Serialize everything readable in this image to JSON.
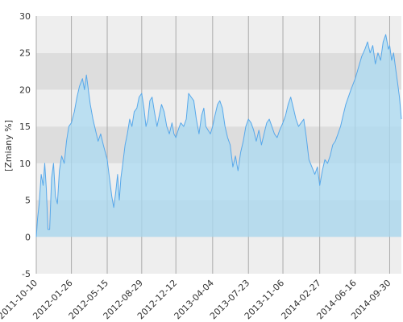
{
  "chart_data": {
    "type": "area",
    "title": "",
    "xlabel": "",
    "ylabel": "[Zmiany %]",
    "ylim": [
      -5,
      30
    ],
    "yticks": [
      -5,
      0,
      5,
      10,
      15,
      20,
      25,
      30
    ],
    "grid": true,
    "legend": "none",
    "xlim": [
      "2011-10-10",
      "2014-11-05"
    ],
    "xtick_labels": [
      "2011-10-10",
      "2012-01-26",
      "2012-05-15",
      "2012-08-29",
      "2012-12-12",
      "2013-04-04",
      "2013-07-23",
      "2013-11-06",
      "2014-02-27",
      "2014-06-16",
      "2014-09-30"
    ],
    "series": [
      {
        "points": [
          [
            "2011-10-10",
            0
          ],
          [
            "2011-10-14",
            2.5
          ],
          [
            "2011-10-19",
            4.5
          ],
          [
            "2011-10-25",
            8.5
          ],
          [
            "2011-10-31",
            7.0
          ],
          [
            "2011-11-05",
            10.0
          ],
          [
            "2011-11-10",
            6.5
          ],
          [
            "2011-11-15",
            1.0
          ],
          [
            "2011-11-20",
            1.0
          ],
          [
            "2011-11-26",
            8.0
          ],
          [
            "2011-12-02",
            10.0
          ],
          [
            "2011-12-08",
            5.5
          ],
          [
            "2011-12-14",
            4.5
          ],
          [
            "2011-12-20",
            9.0
          ],
          [
            "2011-12-27",
            11.0
          ],
          [
            "2012-01-04",
            10.0
          ],
          [
            "2012-01-11",
            13.0
          ],
          [
            "2012-01-18",
            15.0
          ],
          [
            "2012-01-26",
            15.5
          ],
          [
            "2012-02-04",
            17.0
          ],
          [
            "2012-02-12",
            19.0
          ],
          [
            "2012-02-20",
            20.5
          ],
          [
            "2012-02-29",
            21.5
          ],
          [
            "2012-03-06",
            20.0
          ],
          [
            "2012-03-12",
            22.0
          ],
          [
            "2012-03-18",
            20.0
          ],
          [
            "2012-03-24",
            18.0
          ],
          [
            "2012-04-01",
            16.0
          ],
          [
            "2012-04-09",
            14.5
          ],
          [
            "2012-04-17",
            13.0
          ],
          [
            "2012-04-25",
            14.0
          ],
          [
            "2012-05-03",
            12.5
          ],
          [
            "2012-05-15",
            10.5
          ],
          [
            "2012-05-22",
            8.0
          ],
          [
            "2012-05-29",
            5.5
          ],
          [
            "2012-06-04",
            4.0
          ],
          [
            "2012-06-10",
            6.0
          ],
          [
            "2012-06-16",
            8.5
          ],
          [
            "2012-06-21",
            5.0
          ],
          [
            "2012-06-26",
            8.0
          ],
          [
            "2012-07-02",
            10.0
          ],
          [
            "2012-07-09",
            12.5
          ],
          [
            "2012-07-16",
            14.0
          ],
          [
            "2012-07-23",
            16.0
          ],
          [
            "2012-07-30",
            15.0
          ],
          [
            "2012-08-06",
            17.0
          ],
          [
            "2012-08-14",
            17.5
          ],
          [
            "2012-08-21",
            19.0
          ],
          [
            "2012-08-29",
            19.5
          ],
          [
            "2012-09-05",
            17.5
          ],
          [
            "2012-09-11",
            15.0
          ],
          [
            "2012-09-17",
            16.0
          ],
          [
            "2012-09-23",
            18.5
          ],
          [
            "2012-09-30",
            19.0
          ],
          [
            "2012-10-07",
            17.0
          ],
          [
            "2012-10-15",
            15.0
          ],
          [
            "2012-10-22",
            16.5
          ],
          [
            "2012-10-29",
            18.0
          ],
          [
            "2012-11-06",
            17.0
          ],
          [
            "2012-11-14",
            15.0
          ],
          [
            "2012-11-22",
            14.0
          ],
          [
            "2012-11-30",
            15.5
          ],
          [
            "2012-12-06",
            14.0
          ],
          [
            "2012-12-12",
            13.5
          ],
          [
            "2012-12-19",
            14.5
          ],
          [
            "2012-12-27",
            15.5
          ],
          [
            "2013-01-05",
            15.0
          ],
          [
            "2013-01-13",
            16.0
          ],
          [
            "2013-01-20",
            19.5
          ],
          [
            "2013-01-28",
            19.0
          ],
          [
            "2013-02-05",
            18.5
          ],
          [
            "2013-02-13",
            16.0
          ],
          [
            "2013-02-21",
            14.0
          ],
          [
            "2013-03-01",
            16.5
          ],
          [
            "2013-03-08",
            17.5
          ],
          [
            "2013-03-14",
            15.0
          ],
          [
            "2013-03-21",
            14.5
          ],
          [
            "2013-03-28",
            14.0
          ],
          [
            "2013-04-04",
            15.0
          ],
          [
            "2013-04-11",
            16.5
          ],
          [
            "2013-04-19",
            18.0
          ],
          [
            "2013-04-26",
            18.5
          ],
          [
            "2013-05-04",
            17.5
          ],
          [
            "2013-05-12",
            15.0
          ],
          [
            "2013-05-20",
            13.5
          ],
          [
            "2013-05-28",
            12.5
          ],
          [
            "2013-06-05",
            9.5
          ],
          [
            "2013-06-13",
            11.0
          ],
          [
            "2013-06-21",
            9.0
          ],
          [
            "2013-06-29",
            11.5
          ],
          [
            "2013-07-07",
            13.0
          ],
          [
            "2013-07-15",
            15.0
          ],
          [
            "2013-07-23",
            16.0
          ],
          [
            "2013-07-31",
            15.5
          ],
          [
            "2013-08-08",
            14.5
          ],
          [
            "2013-08-16",
            13.0
          ],
          [
            "2013-08-24",
            14.5
          ],
          [
            "2013-09-01",
            12.5
          ],
          [
            "2013-09-09",
            14.0
          ],
          [
            "2013-09-17",
            15.5
          ],
          [
            "2013-09-25",
            16.0
          ],
          [
            "2013-10-03",
            15.0
          ],
          [
            "2013-10-11",
            14.0
          ],
          [
            "2013-10-19",
            13.5
          ],
          [
            "2013-10-27",
            14.5
          ],
          [
            "2013-11-06",
            15.5
          ],
          [
            "2013-11-14",
            16.5
          ],
          [
            "2013-11-22",
            18.0
          ],
          [
            "2013-11-30",
            19.0
          ],
          [
            "2013-12-08",
            17.5
          ],
          [
            "2013-12-16",
            16.0
          ],
          [
            "2013-12-24",
            15.0
          ],
          [
            "2014-01-01",
            15.5
          ],
          [
            "2014-01-09",
            16.0
          ],
          [
            "2014-01-17",
            13.5
          ],
          [
            "2014-01-25",
            10.5
          ],
          [
            "2014-02-03",
            9.5
          ],
          [
            "2014-02-12",
            8.5
          ],
          [
            "2014-02-20",
            9.5
          ],
          [
            "2014-02-27",
            7.0
          ],
          [
            "2014-03-07",
            9.0
          ],
          [
            "2014-03-15",
            10.5
          ],
          [
            "2014-03-23",
            10.0
          ],
          [
            "2014-03-31",
            11.0
          ],
          [
            "2014-04-08",
            12.5
          ],
          [
            "2014-04-16",
            13.0
          ],
          [
            "2014-04-24",
            14.0
          ],
          [
            "2014-05-02",
            15.0
          ],
          [
            "2014-05-10",
            16.5
          ],
          [
            "2014-05-18",
            18.0
          ],
          [
            "2014-05-26",
            19.0
          ],
          [
            "2014-06-03",
            20.0
          ],
          [
            "2014-06-16",
            21.5
          ],
          [
            "2014-06-26",
            23.0
          ],
          [
            "2014-07-06",
            24.5
          ],
          [
            "2014-07-16",
            25.5
          ],
          [
            "2014-07-24",
            26.5
          ],
          [
            "2014-08-01",
            25.0
          ],
          [
            "2014-08-09",
            26.0
          ],
          [
            "2014-08-17",
            23.5
          ],
          [
            "2014-08-25",
            25.0
          ],
          [
            "2014-09-02",
            24.0
          ],
          [
            "2014-09-10",
            26.5
          ],
          [
            "2014-09-18",
            27.5
          ],
          [
            "2014-09-26",
            25.5
          ],
          [
            "2014-09-30",
            26.0
          ],
          [
            "2014-10-06",
            24.0
          ],
          [
            "2014-10-12",
            25.0
          ],
          [
            "2014-10-18",
            23.0
          ],
          [
            "2014-10-24",
            21.0
          ],
          [
            "2014-10-30",
            19.0
          ],
          [
            "2014-11-05",
            16.0
          ]
        ]
      }
    ],
    "colors": {
      "band_light": "#eeeeee",
      "band_dark": "#dddddd",
      "gridline": "#aaaaaa",
      "fill": "#a9daf2",
      "line": "#58a8ea",
      "axis_text": "#333333"
    }
  }
}
